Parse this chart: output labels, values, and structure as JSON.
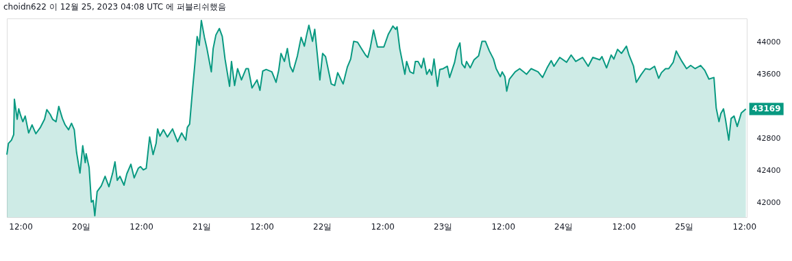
{
  "chart_data": {
    "type": "area",
    "title": "choidn622 이 12월 25, 2023 04:08 UTC 에 퍼블리쉬했음",
    "x": [
      "2023-12-19T09:16",
      "2023-12-19T09:35",
      "2023-12-19T10:11",
      "2023-12-19T10:38",
      "2023-12-19T10:46",
      "2023-12-19T11:19",
      "2023-12-19T11:38",
      "2023-12-19T12:00",
      "2023-12-19T12:27",
      "2023-12-19T12:55",
      "2023-12-19T13:36",
      "2023-12-19T14:17",
      "2023-12-19T15:02",
      "2023-12-19T15:57",
      "2023-12-19T16:46",
      "2023-12-19T17:13",
      "2023-12-19T17:54",
      "2023-12-19T18:22",
      "2023-12-19T19:03",
      "2023-12-19T19:36",
      "2023-12-19T20:19",
      "2023-12-19T20:52",
      "2023-12-19T21:33",
      "2023-12-19T22:08",
      "2023-12-19T22:41",
      "2023-12-19T23:08",
      "2023-12-19T23:49",
      "2023-12-20T00:22",
      "2023-12-20T00:52",
      "2023-12-20T01:03",
      "2023-12-20T01:38",
      "2023-12-20T02:05",
      "2023-12-20T02:27",
      "2023-12-20T02:46",
      "2023-12-20T03:14",
      "2023-12-20T04:03",
      "2023-12-20T04:49",
      "2023-12-20T05:35",
      "2023-12-20T06:19",
      "2023-12-20T06:47",
      "2023-12-20T07:14",
      "2023-12-20T07:46",
      "2023-12-20T08:35",
      "2023-12-20T09:08",
      "2023-12-20T09:57",
      "2023-12-20T10:36",
      "2023-12-20T11:25",
      "2023-12-20T11:52",
      "2023-12-20T12:25",
      "2023-12-20T13:00",
      "2023-12-20T13:19",
      "2023-12-20T13:41",
      "2023-12-20T14:22",
      "2023-12-20T14:58",
      "2023-12-20T15:16",
      "2023-12-20T15:43",
      "2023-12-20T16:25",
      "2023-12-20T17:13",
      "2023-12-20T18:14",
      "2023-12-20T19:14",
      "2023-12-20T20:03",
      "2023-12-20T20:52",
      "2023-12-20T21:11",
      "2023-12-20T21:38",
      "2023-12-20T22:14",
      "2023-12-20T22:41",
      "2023-12-20T23:08",
      "2023-12-20T23:33",
      "2023-12-20T23:58",
      "2023-12-21T00:35",
      "2023-12-21T01:03",
      "2023-12-21T01:57",
      "2023-12-21T02:19",
      "2023-12-21T02:52",
      "2023-12-21T03:33",
      "2023-12-21T04:08",
      "2023-12-21T04:41",
      "2023-12-21T05:35",
      "2023-12-21T05:58",
      "2023-12-21T06:35",
      "2023-12-21T07:11",
      "2023-12-21T07:57",
      "2023-12-21T08:52",
      "2023-12-21T09:19",
      "2023-12-21T10:03",
      "2023-12-21T11:03",
      "2023-12-21T11:38",
      "2023-12-21T12:11",
      "2023-12-21T12:52",
      "2023-12-21T14:00",
      "2023-12-21T14:50",
      "2023-12-21T15:22",
      "2023-12-21T15:49",
      "2023-12-21T16:30",
      "2023-12-21T17:05",
      "2023-12-21T17:38",
      "2023-12-21T18:11",
      "2023-12-21T19:05",
      "2023-12-21T19:49",
      "2023-12-21T20:28",
      "2023-12-21T20:55",
      "2023-12-21T21:22",
      "2023-12-21T22:05",
      "2023-12-21T22:32",
      "2023-12-21T23:33",
      "2023-12-22T00:06",
      "2023-12-22T00:41",
      "2023-12-22T01:49",
      "2023-12-22T02:30",
      "2023-12-22T03:06",
      "2023-12-22T04:11",
      "2023-12-22T05:01",
      "2023-12-22T05:41",
      "2023-12-22T06:17",
      "2023-12-22T07:03",
      "2023-12-22T07:44",
      "2023-12-22T08:38",
      "2023-12-22T09:05",
      "2023-12-22T09:33",
      "2023-12-22T10:14",
      "2023-12-22T11:01",
      "2023-12-22T12:17",
      "2023-12-22T13:11",
      "2023-12-22T14:05",
      "2023-12-22T14:38",
      "2023-12-22T14:55",
      "2023-12-22T15:27",
      "2023-12-22T16:28",
      "2023-12-22T16:49",
      "2023-12-22T17:30",
      "2023-12-22T18:11",
      "2023-12-22T18:33",
      "2023-12-22T19:05",
      "2023-12-22T19:46",
      "2023-12-22T20:13",
      "2023-12-22T20:49",
      "2023-12-22T21:22",
      "2023-12-22T21:49",
      "2023-12-22T22:16",
      "2023-12-22T22:57",
      "2023-12-22T23:25",
      "2023-12-23T00:06",
      "2023-12-23T00:55",
      "2023-12-23T01:22",
      "2023-12-23T02:22",
      "2023-12-23T02:50",
      "2023-12-23T03:25",
      "2023-12-23T03:49",
      "2023-12-23T04:25",
      "2023-12-23T04:44",
      "2023-12-23T05:28",
      "2023-12-23T06:14",
      "2023-12-23T07:08",
      "2023-12-23T07:49",
      "2023-12-23T08:30",
      "2023-12-23T09:17",
      "2023-12-23T10:06",
      "2023-12-23T10:38",
      "2023-12-23T11:28",
      "2023-12-23T11:50",
      "2023-12-23T12:22",
      "2023-12-23T12:44",
      "2023-12-23T13:16",
      "2023-12-23T14:25",
      "2023-12-23T15:19",
      "2023-12-23T16:41",
      "2023-12-23T17:36",
      "2023-12-23T18:58",
      "2023-12-23T19:52",
      "2023-12-23T20:46",
      "2023-12-23T21:35",
      "2023-12-23T22:08",
      "2023-12-23T23:17",
      "2023-12-24T00:39",
      "2023-12-24T01:33",
      "2023-12-24T02:28",
      "2023-12-24T03:49",
      "2023-12-24T04:57",
      "2023-12-24T05:52",
      "2023-12-24T07:14",
      "2023-12-24T07:41",
      "2023-12-24T08:36",
      "2023-12-24T09:31",
      "2023-12-24T10:03",
      "2023-12-24T10:47",
      "2023-12-24T11:34",
      "2023-12-24T12:33",
      "2023-12-24T13:04",
      "2023-12-24T13:58",
      "2023-12-24T14:31",
      "2023-12-24T15:25",
      "2023-12-24T16:20",
      "2023-12-24T17:14",
      "2023-12-24T18:09",
      "2023-12-24T18:58",
      "2023-12-24T19:31",
      "2023-12-24T20:20",
      "2023-12-24T20:58",
      "2023-12-24T21:52",
      "2023-12-24T22:28",
      "2023-12-24T23:03",
      "2023-12-24T23:36",
      "2023-12-25T00:31",
      "2023-12-25T01:20",
      "2023-12-25T02:14",
      "2023-12-25T03:19",
      "2023-12-25T04:08",
      "2023-12-25T04:58",
      "2023-12-25T05:58",
      "2023-12-25T06:25",
      "2023-12-25T06:58",
      "2023-12-25T07:20",
      "2023-12-25T07:52",
      "2023-12-25T08:14",
      "2023-12-25T08:55",
      "2023-12-25T09:23",
      "2023-12-25T09:58",
      "2023-12-25T10:36",
      "2023-12-25T11:25",
      "2023-12-25T12:19"
    ],
    "series": [
      {
        "color": "#089981",
        "values": [
          42600,
          42740,
          42780,
          42850,
          43290,
          43040,
          43170,
          43090,
          43010,
          43080,
          42870,
          42970,
          42860,
          42940,
          43040,
          43160,
          43100,
          43040,
          43010,
          43200,
          43050,
          42970,
          42910,
          42990,
          42910,
          42630,
          42370,
          42710,
          42500,
          42610,
          42440,
          42010,
          42030,
          41840,
          42140,
          42210,
          42330,
          42200,
          42370,
          42510,
          42280,
          42330,
          42220,
          42360,
          42480,
          42310,
          42430,
          42450,
          42410,
          42430,
          42610,
          42820,
          42600,
          42740,
          42920,
          42830,
          42910,
          42820,
          42920,
          42760,
          42870,
          42780,
          42940,
          42980,
          43420,
          43730,
          44070,
          43960,
          44270,
          44060,
          43930,
          43630,
          43920,
          44090,
          44170,
          44070,
          43790,
          43450,
          43760,
          43460,
          43670,
          43530,
          43670,
          43670,
          43430,
          43530,
          43400,
          43640,
          43660,
          43630,
          43500,
          43650,
          43860,
          43760,
          43920,
          43700,
          43630,
          43830,
          44060,
          43950,
          44090,
          44210,
          44010,
          44160,
          43530,
          43860,
          43820,
          43480,
          43460,
          43620,
          43480,
          43690,
          43790,
          44010,
          44000,
          43930,
          43840,
          43810,
          43920,
          44150,
          43940,
          43940,
          44100,
          44200,
          44160,
          44190,
          43920,
          43600,
          43760,
          43630,
          43610,
          43760,
          43760,
          43680,
          43800,
          43600,
          43660,
          43590,
          43790,
          43450,
          43660,
          43670,
          43700,
          43560,
          43750,
          43900,
          43990,
          43730,
          43680,
          43760,
          43680,
          43780,
          43830,
          44010,
          44010,
          43890,
          43790,
          43670,
          43570,
          43630,
          43570,
          43390,
          43540,
          43630,
          43670,
          43600,
          43670,
          43630,
          43560,
          43680,
          43770,
          43700,
          43810,
          43750,
          43840,
          43760,
          43810,
          43700,
          43810,
          43780,
          43820,
          43680,
          43840,
          43790,
          43910,
          43860,
          43950,
          43840,
          43700,
          43500,
          43590,
          43670,
          43660,
          43700,
          43550,
          43620,
          43670,
          43670,
          43750,
          43890,
          43820,
          43760,
          43670,
          43710,
          43670,
          43710,
          43650,
          43540,
          43560,
          43180,
          43010,
          43110,
          43170,
          43050,
          42780,
          43050,
          43080,
          42950,
          43120,
          43169
        ]
      }
    ],
    "xlim": [
      "2023-12-19T09:16",
      "2023-12-25T12:30"
    ],
    "xticks": [
      {
        "value": "2023-12-19T12:00",
        "label": "12:00"
      },
      {
        "value": "2023-12-20",
        "label": "20일"
      },
      {
        "value": "2023-12-20T12:00",
        "label": "12:00"
      },
      {
        "value": "2023-12-21",
        "label": "21일"
      },
      {
        "value": "2023-12-21T12:00",
        "label": "12:00"
      },
      {
        "value": "2023-12-22",
        "label": "22일"
      },
      {
        "value": "2023-12-22T12:00",
        "label": "12:00"
      },
      {
        "value": "2023-12-23",
        "label": "23일"
      },
      {
        "value": "2023-12-23T12:00",
        "label": "12:00"
      },
      {
        "value": "2023-12-24",
        "label": "24일"
      },
      {
        "value": "2023-12-24T12:00",
        "label": "12:00"
      },
      {
        "value": "2023-12-25",
        "label": "25일"
      },
      {
        "value": "2023-12-25T12:00",
        "label": "12:00"
      }
    ],
    "ylim": [
      41820,
      44295
    ],
    "yticks": [
      42000,
      42400,
      42800,
      43600,
      44000
    ],
    "annotations": [
      {
        "text": "43169",
        "x": "2023-12-25T12:19",
        "y": 43169
      }
    ],
    "grid": false
  }
}
